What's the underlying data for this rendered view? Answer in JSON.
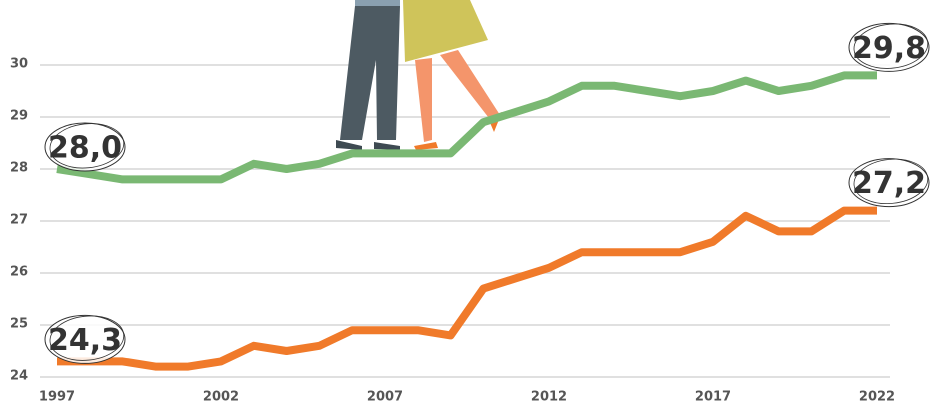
{
  "chart_data": {
    "type": "line",
    "x": [
      1997,
      1998,
      1999,
      2000,
      2001,
      2002,
      2003,
      2004,
      2005,
      2006,
      2007,
      2008,
      2009,
      2010,
      2011,
      2012,
      2013,
      2014,
      2015,
      2016,
      2017,
      2018,
      2019,
      2020,
      2021,
      2022
    ],
    "series": [
      {
        "color": "#7ab873",
        "values": [
          28.0,
          27.9,
          27.8,
          27.8,
          27.8,
          27.8,
          28.1,
          28.0,
          28.1,
          28.3,
          28.3,
          28.3,
          28.3,
          28.9,
          29.1,
          29.3,
          29.6,
          29.6,
          29.5,
          29.4,
          29.5,
          29.7,
          29.5,
          29.6,
          29.8,
          29.8
        ],
        "value_labels": [
          "28,0",
          null,
          null,
          null,
          null,
          null,
          null,
          null,
          null,
          null,
          null,
          null,
          null,
          null,
          null,
          null,
          null,
          null,
          null,
          null,
          null,
          null,
          null,
          null,
          null,
          "29,8"
        ]
      },
      {
        "color": "#f07a2a",
        "values": [
          24.3,
          24.3,
          24.3,
          24.2,
          24.2,
          24.3,
          24.6,
          24.5,
          24.6,
          24.9,
          24.9,
          24.9,
          24.8,
          25.7,
          25.9,
          26.1,
          26.4,
          26.4,
          26.4,
          26.4,
          26.6,
          27.1,
          26.8,
          26.8,
          27.2,
          27.2
        ],
        "value_labels": [
          "24,3",
          null,
          null,
          null,
          null,
          null,
          null,
          null,
          null,
          null,
          null,
          null,
          null,
          null,
          null,
          null,
          null,
          null,
          null,
          null,
          null,
          null,
          null,
          null,
          null,
          "27,2"
        ]
      }
    ],
    "xlim": [
      1997,
      2022
    ],
    "xticks": [
      1997,
      2002,
      2007,
      2012,
      2017,
      2022
    ],
    "ylim": [
      24,
      30
    ],
    "yticks": [
      24,
      25,
      26,
      27,
      28,
      29,
      30
    ],
    "grid": true
  }
}
